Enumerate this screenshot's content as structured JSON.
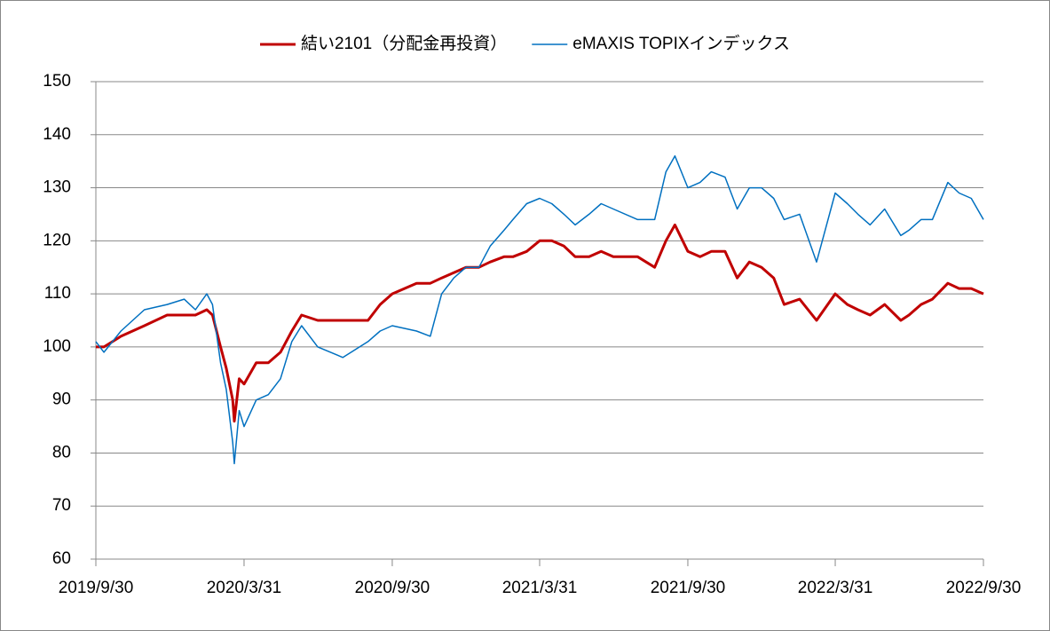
{
  "chart_data": {
    "type": "line",
    "x": [
      "2019/9/30",
      "2019/10/10",
      "2019/10/31",
      "2019/11/29",
      "2019/12/27",
      "2020/1/17",
      "2020/1/31",
      "2020/2/14",
      "2020/2/21",
      "2020/3/2",
      "2020/3/9",
      "2020/3/17",
      "2020/3/19",
      "2020/3/25",
      "2020/3/31",
      "2020/4/15",
      "2020/4/30",
      "2020/5/15",
      "2020/5/29",
      "2020/6/10",
      "2020/6/30",
      "2020/7/31",
      "2020/8/31",
      "2020/9/15",
      "2020/9/30",
      "2020/10/30",
      "2020/11/16",
      "2020/11/30",
      "2020/12/15",
      "2020/12/30",
      "2021/1/15",
      "2021/1/29",
      "2021/2/15",
      "2021/2/26",
      "2021/3/15",
      "2021/3/31",
      "2021/4/15",
      "2021/4/30",
      "2021/5/14",
      "2021/5/31",
      "2021/6/15",
      "2021/6/30",
      "2021/7/30",
      "2021/8/20",
      "2021/9/3",
      "2021/9/14",
      "2021/9/30",
      "2021/10/15",
      "2021/10/29",
      "2021/11/15",
      "2021/11/30",
      "2021/12/15",
      "2021/12/30",
      "2022/1/14",
      "2022/1/27",
      "2022/2/15",
      "2022/3/8",
      "2022/3/31",
      "2022/4/15",
      "2022/4/28",
      "2022/5/13",
      "2022/5/31",
      "2022/6/20",
      "2022/6/30",
      "2022/7/15",
      "2022/7/29",
      "2022/8/17",
      "2022/8/31",
      "2022/9/15",
      "2022/9/30"
    ],
    "series": [
      {
        "name": "結い2101（分配金再投資）",
        "color": "#c00000",
        "width": 3,
        "values": [
          100,
          100,
          102,
          104,
          106,
          106,
          106,
          107,
          106,
          100,
          96,
          90,
          86,
          94,
          93,
          97,
          97,
          99,
          103,
          106,
          105,
          105,
          105,
          108,
          110,
          112,
          112,
          113,
          114,
          115,
          115,
          116,
          117,
          117,
          118,
          120,
          120,
          119,
          117,
          117,
          118,
          117,
          117,
          115,
          120,
          123,
          118,
          117,
          118,
          118,
          113,
          116,
          115,
          113,
          108,
          109,
          105,
          110,
          108,
          107,
          106,
          108,
          105,
          106,
          108,
          109,
          112,
          111,
          111,
          110
        ]
      },
      {
        "name": "eMAXIS TOPIXインデックス",
        "color": "#0070c0",
        "width": 1.5,
        "values": [
          101,
          99,
          103,
          107,
          108,
          109,
          107,
          110,
          108,
          97,
          92,
          82,
          78,
          88,
          85,
          90,
          91,
          94,
          101,
          104,
          100,
          98,
          101,
          103,
          104,
          103,
          102,
          110,
          113,
          115,
          115,
          119,
          122,
          124,
          127,
          128,
          127,
          125,
          123,
          125,
          127,
          126,
          124,
          124,
          133,
          136,
          130,
          131,
          133,
          132,
          126,
          130,
          130,
          128,
          124,
          125,
          116,
          129,
          127,
          125,
          123,
          126,
          121,
          122,
          124,
          124,
          131,
          129,
          128,
          124
        ]
      }
    ],
    "xlim": [
      "2019/9/30",
      "2022/9/30"
    ],
    "xticks": [
      "2019/9/30",
      "2020/3/31",
      "2020/9/30",
      "2021/3/31",
      "2021/9/30",
      "2022/3/31",
      "2022/9/30"
    ],
    "ylim": [
      60,
      150
    ],
    "yticks": [
      60,
      70,
      80,
      90,
      100,
      110,
      120,
      130,
      140,
      150
    ],
    "grid": true,
    "legend": "top"
  }
}
